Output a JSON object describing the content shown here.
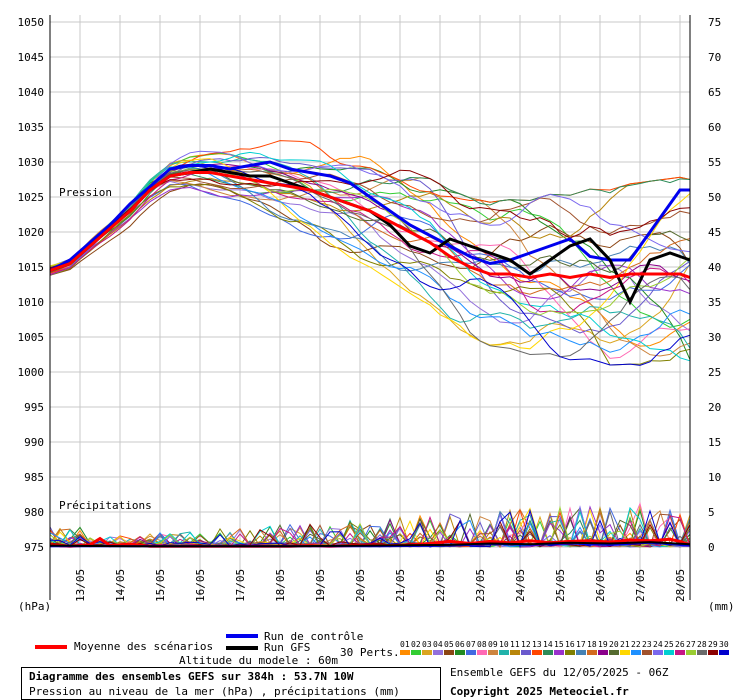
{
  "chart_data": {
    "type": "line",
    "title": "Diagramme des ensembles GEFS sur 384h : 53.7N 10W",
    "subtitle": "Pression au niveau de la mer (hPa) , précipitations (mm)",
    "y_left_label": "(hPa)",
    "y_right_label": "(mm)",
    "y_left_ticks": [
      1050,
      1045,
      1040,
      1035,
      1030,
      1025,
      1020,
      1015,
      1010,
      1005,
      1000,
      995,
      990,
      985,
      980,
      975
    ],
    "y_right_ticks": [
      75,
      70,
      65,
      60,
      55,
      50,
      45,
      40,
      35,
      30,
      25,
      20,
      15,
      10,
      5,
      0
    ],
    "x_ticks": [
      "13/05",
      "14/05",
      "15/05",
      "16/05",
      "17/05",
      "18/05",
      "19/05",
      "20/05",
      "21/05",
      "22/05",
      "23/05",
      "24/05",
      "25/05",
      "26/05",
      "27/05",
      "28/05"
    ],
    "pressure_label": "Pression",
    "precip_label": "Précipitations",
    "x_range_hours": [
      0,
      384
    ],
    "y_left_range": [
      975,
      1050
    ],
    "grid": true,
    "series": [
      {
        "name": "Run de contrôle",
        "color": "#0000ee",
        "x": [
          0,
          12,
          24,
          36,
          48,
          60,
          72,
          84,
          96,
          108,
          120,
          132,
          144,
          156,
          168,
          180,
          192,
          204,
          216,
          228,
          240,
          252,
          264,
          276,
          288,
          300,
          312,
          324,
          336,
          348,
          360,
          372,
          378,
          384
        ],
        "y": [
          1014.5,
          1016,
          1018.5,
          1021,
          1024,
          1026.5,
          1029,
          1029.5,
          1029.5,
          1029,
          1029.5,
          1030,
          1029,
          1028.5,
          1028,
          1027,
          1025,
          1023,
          1021,
          1019.5,
          1018,
          1016.5,
          1015.5,
          1016,
          1017,
          1018,
          1019,
          1016.5,
          1016,
          1016,
          1020,
          1024,
          1026,
          1026
        ]
      },
      {
        "name": "Run GFS",
        "color": "#000000",
        "x": [
          0,
          12,
          24,
          36,
          48,
          60,
          72,
          84,
          96,
          108,
          120,
          132,
          144,
          156,
          168,
          180,
          192,
          204,
          216,
          228,
          240,
          252,
          264,
          276,
          288,
          300,
          312,
          324,
          336,
          348,
          360,
          372,
          378,
          384
        ],
        "y": [
          1014.5,
          1015.5,
          1018,
          1020.5,
          1023,
          1026,
          1028,
          1028.5,
          1029,
          1028.5,
          1028,
          1028,
          1027,
          1026,
          1025,
          1024,
          1023,
          1021,
          1018,
          1017,
          1019,
          1018,
          1017,
          1016,
          1014,
          1016,
          1018,
          1019,
          1016,
          1010,
          1016,
          1017,
          1016.5,
          1016
        ]
      },
      {
        "name": "Moyenne des scénarios",
        "color": "#ff0000",
        "x": [
          0,
          12,
          24,
          36,
          48,
          60,
          72,
          84,
          96,
          108,
          120,
          132,
          144,
          156,
          168,
          180,
          192,
          204,
          216,
          228,
          240,
          252,
          264,
          276,
          288,
          300,
          312,
          324,
          336,
          348,
          360,
          372,
          378,
          384
        ],
        "y": [
          1014.5,
          1015.5,
          1018,
          1020.5,
          1023,
          1026,
          1028,
          1028.5,
          1028.5,
          1028,
          1027.5,
          1027,
          1026.5,
          1026,
          1025,
          1024,
          1023,
          1021.5,
          1020,
          1018.5,
          1016.5,
          1015,
          1014,
          1014,
          1013.5,
          1014,
          1013.5,
          1014,
          1013.5,
          1014,
          1014,
          1014,
          1014,
          1013.5
        ]
      }
    ],
    "precip_series": [
      {
        "name": "Moyenne des scénarios",
        "color": "#ff0000",
        "x": [
          0,
          12,
          24,
          30,
          36,
          48,
          60,
          72,
          84,
          96,
          108,
          120,
          132,
          144,
          156,
          168,
          180,
          192,
          204,
          216,
          228,
          240,
          252,
          264,
          276,
          288,
          300,
          312,
          324,
          336,
          348,
          360,
          372,
          378,
          384
        ],
        "y": [
          0.3,
          0.1,
          0.3,
          1.2,
          0.2,
          0.4,
          0.1,
          0.1,
          0.1,
          0.1,
          0.1,
          0.1,
          0.1,
          0.1,
          0.2,
          0.1,
          0.2,
          0.3,
          0.2,
          0.3,
          0.5,
          0.8,
          0.5,
          0.8,
          0.6,
          0.9,
          0.6,
          0.8,
          0.9,
          0.7,
          1.0,
          0.9,
          1.1,
          0.8,
          0.3
        ]
      },
      {
        "name": "Run de contrôle",
        "color": "#0000ee",
        "x": [
          0,
          48,
          96,
          144,
          192,
          240,
          264,
          288,
          312,
          336,
          360,
          384
        ],
        "y": [
          0.1,
          0.1,
          0.1,
          0.1,
          0.1,
          0.2,
          0.4,
          0.3,
          0.5,
          0.3,
          0.6,
          0.2
        ]
      },
      {
        "name": "Run GFS",
        "color": "#000000",
        "x": [
          0,
          48,
          96,
          144,
          192,
          240,
          264,
          288,
          312,
          336,
          360,
          384
        ],
        "y": [
          0.2,
          0.1,
          0.1,
          0.1,
          0.2,
          0.3,
          0.5,
          0.4,
          0.6,
          0.5,
          0.7,
          0.4
        ]
      }
    ],
    "ensemble_colors": [
      "#ff8c00",
      "#32cd32",
      "#daa520",
      "#9370db",
      "#8b4513",
      "#228b22",
      "#4169e1",
      "#ff69b4",
      "#cd853f",
      "#20b2aa",
      "#b8860b",
      "#6a5acd",
      "#ff4500",
      "#2e8b57",
      "#9932cc",
      "#808000",
      "#4682b4",
      "#d2691e",
      "#8b008b",
      "#556b2f",
      "#ffd700",
      "#1e90ff",
      "#a0522d",
      "#7b68ee",
      "#00ced1",
      "#c71585",
      "#9acd32",
      "#696969",
      "#8b0000",
      "#0000cd"
    ],
    "ensemble_labels": [
      "01",
      "02",
      "03",
      "04",
      "05",
      "06",
      "07",
      "08",
      "09",
      "10",
      "11",
      "12",
      "13",
      "14",
      "15",
      "16",
      "17",
      "18",
      "19",
      "20",
      "21",
      "22",
      "23",
      "24",
      "25",
      "26",
      "27",
      "28",
      "29",
      "30"
    ]
  },
  "legend": {
    "mean_label": "Moyenne des scénarios",
    "control_label": "Run de contrôle",
    "gfs_label": "Run GFS",
    "perts_label": "30 Perts."
  },
  "footer": {
    "altitude": "Altitude du modele : 60m",
    "title": "Diagramme des ensembles GEFS sur 384h : 53.7N 10W",
    "subtitle": "Pression au niveau de la mer (hPa) , précipitations (mm)",
    "run_info": "Ensemble GEFS du 12/05/2025 - 06Z",
    "copyright": "Copyright 2025 Meteociel.fr"
  }
}
